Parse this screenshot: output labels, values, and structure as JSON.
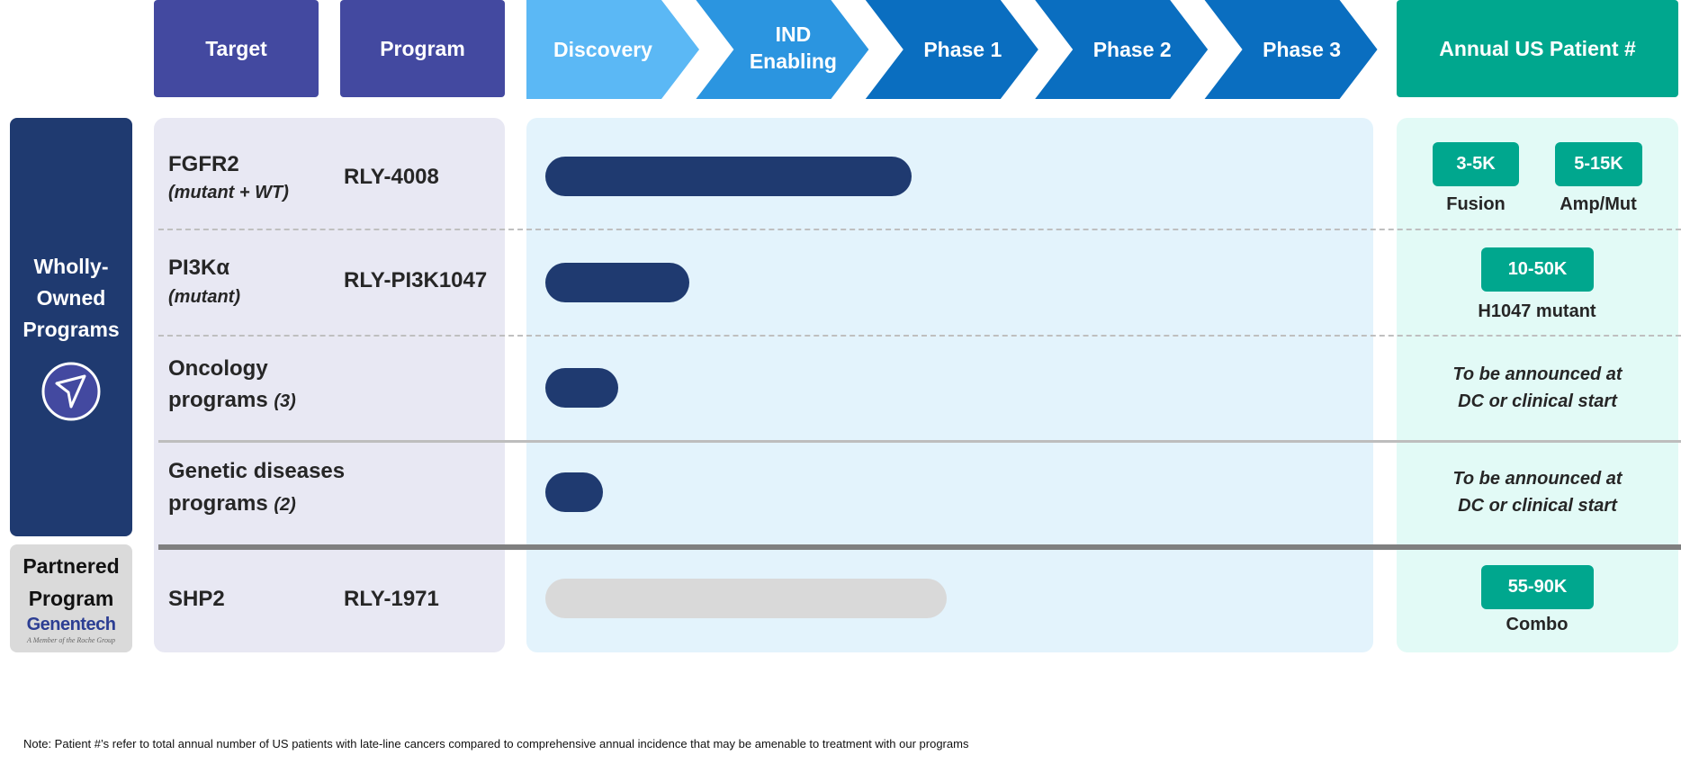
{
  "headers": {
    "target": "Target",
    "program": "Program",
    "annual": "Annual US Patient #"
  },
  "stages": [
    "Discovery",
    "IND Enabling",
    "Phase 1",
    "Phase 2",
    "Phase 3"
  ],
  "stage_colors": [
    "#5BB8F5",
    "#2B95E0",
    "#0A6EC0",
    "#0A6EC0",
    "#0A6EC0"
  ],
  "groups": {
    "wholly_owned": "Wholly-Owned Programs",
    "partnered": "Partnered Program",
    "partner_logo": "Genentech",
    "partner_tagline": "A Member of the Roche Group"
  },
  "rows": [
    {
      "target": "FGFR2",
      "target_note": "(mutant + WT)",
      "program": "RLY-4008",
      "progress_stages": 2.27,
      "bar_color": "#1F3A70",
      "patients": [
        {
          "value": "3-5K",
          "label": "Fusion"
        },
        {
          "value": "5-15K",
          "label": "Amp/Mut"
        }
      ]
    },
    {
      "target": "PI3Kα",
      "target_note": "(mutant)",
      "program": "RLY-PI3K1047",
      "progress_stages": 0.96,
      "bar_color": "#1F3A70",
      "patients": [
        {
          "value": "10-50K",
          "label": "H1047 mutant"
        }
      ]
    },
    {
      "target": "Oncology",
      "target_line2": "programs",
      "target_count": "(3)",
      "progress_stages": 0.54,
      "bar_color": "#1F3A70",
      "patients_text": [
        "To be announced at",
        "DC or clinical start"
      ]
    },
    {
      "target": "Genetic diseases",
      "target_line2": "programs",
      "target_count": "(2)",
      "progress_stages": 0.45,
      "bar_color": "#1F3A70",
      "patients_text": [
        "To be announced at",
        "DC or clinical start"
      ]
    },
    {
      "target": "SHP2",
      "program": "RLY-1971",
      "progress_stages": 2.48,
      "bar_color": "#D9D9D9",
      "patients": [
        {
          "value": "55-90K",
          "label": "Combo"
        }
      ]
    }
  ],
  "note": "Note: Patient #’s refer to total annual number of US patients with late-line cancers compared to comprehensive annual incidence that may be amenable to treatment with our programs"
}
